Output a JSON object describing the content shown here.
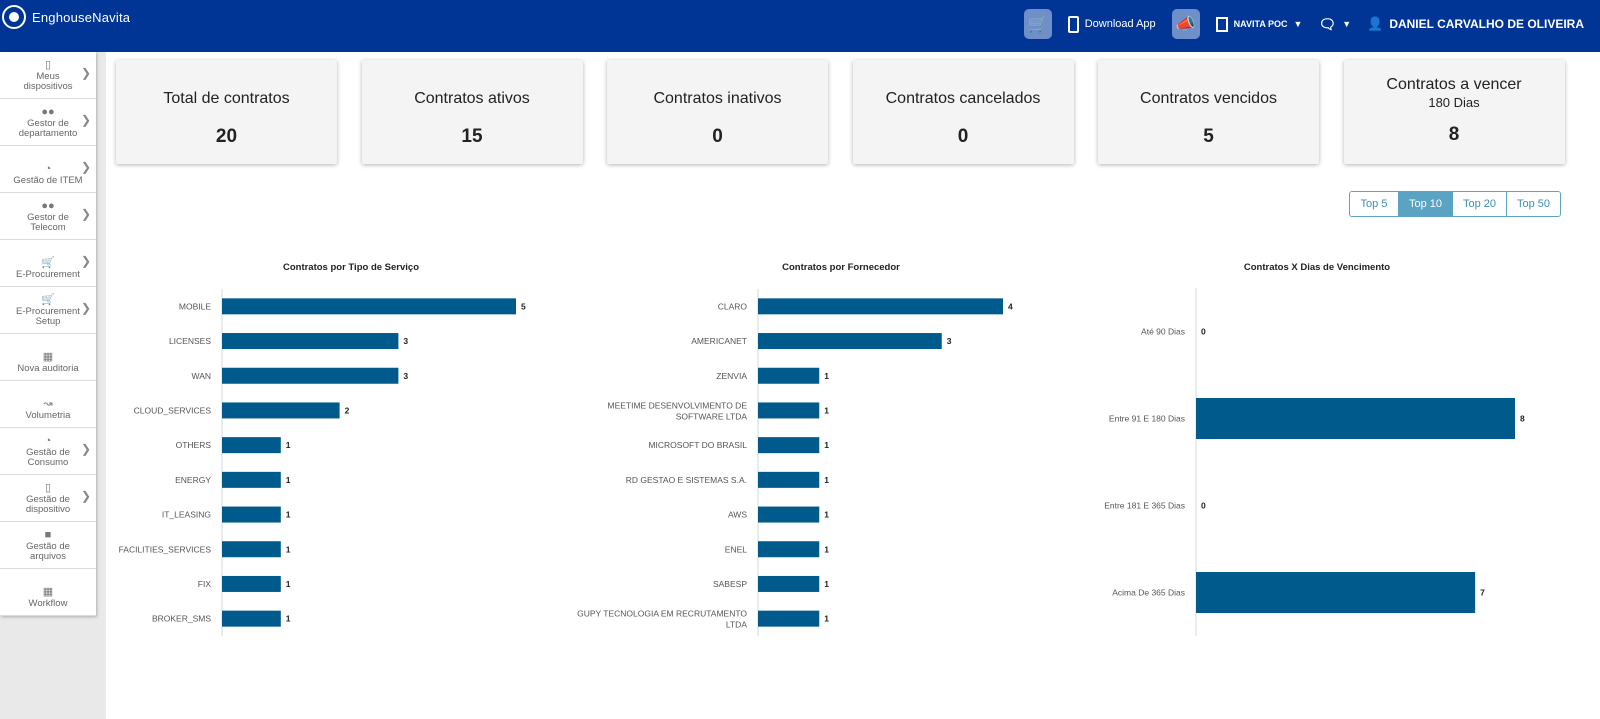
{
  "brand": {
    "name": "EnghouseNavita"
  },
  "header": {
    "download_label": "Download App",
    "org_label": "NAVITA POC",
    "user_name": "DANIEL CARVALHO DE OLIVEIRA"
  },
  "sidebar": {
    "items": [
      {
        "label": "Meus dispositivos",
        "icon": "phone-icon",
        "chevron": true
      },
      {
        "label": "Gestor de departamento",
        "icon": "users-icon",
        "chevron": true
      },
      {
        "label": "Gestão de ITEM",
        "icon": "pie-icon",
        "chevron": true
      },
      {
        "label": "Gestor de Telecom",
        "icon": "users-icon",
        "chevron": true
      },
      {
        "label": "E-Procurement",
        "icon": "cart-icon",
        "chevron": true
      },
      {
        "label": "E-Procurement Setup",
        "icon": "cart-gear-icon",
        "chevron": true
      },
      {
        "label": "Nova auditoria",
        "icon": "table-search-icon",
        "chevron": false
      },
      {
        "label": "Volumetria",
        "icon": "line-chart-icon",
        "chevron": false
      },
      {
        "label": "Gestão de Consumo",
        "icon": "pie-icon",
        "chevron": true
      },
      {
        "label": "Gestão de dispositivo",
        "icon": "phone-search-icon",
        "chevron": true
      },
      {
        "label": "Gestão de arquivos",
        "icon": "folder-icon",
        "chevron": false
      },
      {
        "label": "Workflow",
        "icon": "table-search-icon",
        "chevron": false
      }
    ]
  },
  "cards": [
    {
      "title": "Total de contratos",
      "subtitle": "",
      "value": "20"
    },
    {
      "title": "Contratos ativos",
      "subtitle": "",
      "value": "15"
    },
    {
      "title": "Contratos inativos",
      "subtitle": "",
      "value": "0"
    },
    {
      "title": "Contratos cancelados",
      "subtitle": "",
      "value": "0"
    },
    {
      "title": "Contratos vencidos",
      "subtitle": "",
      "value": "5"
    },
    {
      "title": "Contratos a vencer",
      "subtitle": "180 Dias",
      "value": "8"
    }
  ],
  "top_filter": {
    "options": [
      "Top 5",
      "Top 10",
      "Top 20",
      "Top 50"
    ],
    "selected": "Top 10"
  },
  "colors": {
    "bar": "#005a8c",
    "header": "#003595",
    "accent": "#5aa3c2"
  },
  "chart_data": [
    {
      "type": "bar",
      "orientation": "horizontal",
      "title": "Contratos por Tipo de Serviço",
      "categories": [
        "MOBILE",
        "LICENSES",
        "WAN",
        "CLOUD_SERVICES",
        "OTHERS",
        "ENERGY",
        "IT_LEASING",
        "FACILITIES_SERVICES",
        "FIX",
        "BROKER_SMS"
      ],
      "values": [
        5,
        3,
        3,
        2,
        1,
        1,
        1,
        1,
        1,
        1
      ],
      "xlim": [
        0,
        5
      ]
    },
    {
      "type": "bar",
      "orientation": "horizontal",
      "title": "Contratos por Fornecedor",
      "categories": [
        "CLARO",
        "AMERICANET",
        "ZENVIA",
        "MEETIME DESENVOLVIMENTO DE SOFTWARE LTDA",
        "MICROSOFT DO BRASIL",
        "RD GESTAO E SISTEMAS S.A.",
        "AWS",
        "ENEL",
        "SABESP",
        "GUPY TECNOLOGIA EM RECRUTAMENTO LTDA"
      ],
      "values": [
        4,
        3,
        1,
        1,
        1,
        1,
        1,
        1,
        1,
        1
      ],
      "xlim": [
        0,
        4
      ]
    },
    {
      "type": "bar",
      "orientation": "horizontal",
      "title": "Contratos X Dias de Vencimento",
      "categories": [
        "Até 90 Dias",
        "Entre 91 E 180 Dias",
        "Entre 181 E 365 Dias",
        "Acima De 365 Dias"
      ],
      "values": [
        0,
        8,
        0,
        7
      ],
      "xlim": [
        0,
        8
      ]
    }
  ]
}
